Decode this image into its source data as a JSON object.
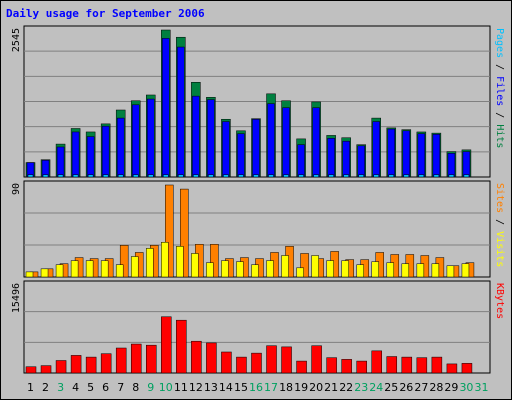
{
  "chart_data": {
    "type": "bar",
    "title": "Daily usage for September 2006",
    "colors": {
      "title": "#0000ff",
      "pages": "#00c0ff",
      "files": "#0000ff",
      "hits": "#008040",
      "visits": "#ffff00",
      "sites": "#ff8000",
      "kbytes": "#ff0000",
      "weekend_day": "#00a060",
      "weekday_day": "#000000",
      "plot_bg": "#c0c0c0",
      "grid": "#808080"
    },
    "categories": [
      "1",
      "2",
      "3",
      "4",
      "5",
      "6",
      "7",
      "8",
      "9",
      "10",
      "11",
      "12",
      "13",
      "14",
      "15",
      "16",
      "17",
      "18",
      "19",
      "20",
      "21",
      "22",
      "23",
      "24",
      "25",
      "26",
      "27",
      "28",
      "29",
      "30",
      "31"
    ],
    "weekend_days": [
      3,
      9,
      10,
      16,
      17,
      23,
      24,
      30,
      31
    ],
    "panels": [
      {
        "id": "hits-files-pages",
        "ymax_label": "2545",
        "ymax": 2545,
        "legend": [
          {
            "text": "Pages",
            "color_key": "pages"
          },
          {
            "text": " / ",
            "color_key": "weekday_day"
          },
          {
            "text": "Files",
            "color_key": "files"
          },
          {
            "text": " / ",
            "color_key": "weekday_day"
          },
          {
            "text": "Hits",
            "color_key": "hits"
          }
        ],
        "series": [
          {
            "name": "Hits",
            "color_key": "hits",
            "values": [
              250,
              300,
              570,
              840,
              780,
              920,
              1160,
              1320,
              1420,
              2545,
              2420,
              1640,
              1380,
              1000,
              800,
              1010,
              1440,
              1320,
              660,
              1300,
              720,
              680,
              560,
              1020,
              850,
              820,
              780,
              760,
              440,
              470,
              0
            ]
          },
          {
            "name": "Files",
            "color_key": "files",
            "values": [
              250,
              290,
              520,
              780,
              700,
              880,
              1020,
              1250,
              1350,
              2400,
              2250,
              1400,
              1340,
              960,
              750,
              1000,
              1270,
              1200,
              560,
              1200,
              670,
              620,
              540,
              960,
              830,
              800,
              750,
              740,
              410,
              440,
              0
            ]
          },
          {
            "name": "Pages",
            "color_key": "pages",
            "values": [
              40,
              40,
              40,
              40,
              40,
              40,
              40,
              40,
              40,
              40,
              40,
              40,
              40,
              40,
              40,
              40,
              40,
              40,
              40,
              40,
              40,
              40,
              40,
              40,
              40,
              40,
              40,
              40,
              40,
              40,
              0
            ]
          }
        ]
      },
      {
        "id": "visits-sites",
        "ymax_label": "90",
        "ymax": 90,
        "legend": [
          {
            "text": "Sites",
            "color_key": "sites"
          },
          {
            "text": " / ",
            "color_key": "weekday_day"
          },
          {
            "text": "Visits",
            "color_key": "visits"
          }
        ],
        "series": [
          {
            "name": "Sites",
            "color_key": "sites",
            "values": [
              5,
              8,
              13,
              19,
              18,
              18,
              31,
              24,
              31,
              90,
              86,
              32,
              32,
              18,
              19,
              18,
              24,
              30,
              23,
              18,
              25,
              17,
              17,
              24,
              22,
              22,
              21,
              19,
              11,
              14,
              0
            ]
          },
          {
            "name": "Visits",
            "color_key": "visits",
            "values": [
              5,
              8,
              12,
              16,
              16,
              16,
              12,
              20,
              28,
              34,
              30,
              23,
              14,
              16,
              15,
              12,
              16,
              21,
              9,
              21,
              16,
              16,
              12,
              15,
              14,
              13,
              13,
              13,
              11,
              13,
              0
            ]
          }
        ]
      },
      {
        "id": "kbytes",
        "ymax_label": "15496",
        "ymax": 15496,
        "legend": [
          {
            "text": "KBytes",
            "color_key": "kbytes"
          }
        ],
        "series": [
          {
            "name": "KBytes",
            "color_key": "kbytes",
            "values": [
              1100,
              1300,
              2200,
              3100,
              2800,
              3400,
              4400,
              5100,
              4900,
              9900,
              9300,
              5600,
              5300,
              3700,
              2800,
              3500,
              4800,
              4600,
              2100,
              4800,
              2700,
              2400,
              2100,
              3900,
              2900,
              2800,
              2700,
              2800,
              1600,
              1700,
              0
            ]
          }
        ]
      }
    ]
  }
}
